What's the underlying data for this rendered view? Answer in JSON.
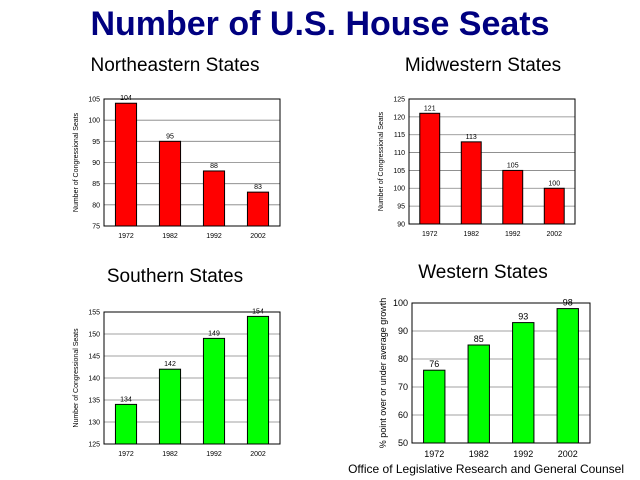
{
  "page": {
    "title": "Number of U.S. House Seats",
    "credit": "Office of Legislative Research and General Counsel"
  },
  "colors": {
    "title": "#000080",
    "red_bars": "#ff0000",
    "green_bars": "#00ff00"
  },
  "chart_data": [
    {
      "type": "bar",
      "title": "Northeastern States",
      "ylabel": "Number of Congressional Seats",
      "categories": [
        "1972",
        "1982",
        "1992",
        "2002"
      ],
      "values": [
        104,
        95,
        88,
        83
      ],
      "ylim": [
        75,
        105
      ],
      "yticks": [
        75,
        80,
        85,
        90,
        95,
        100,
        105
      ],
      "color": "#ff0000",
      "grid": true
    },
    {
      "type": "bar",
      "title": "Midwestern States",
      "ylabel": "Number of Congressional Seats",
      "categories": [
        "1972",
        "1982",
        "1992",
        "2002"
      ],
      "values": [
        121,
        113,
        105,
        100
      ],
      "ylim": [
        90,
        125
      ],
      "yticks": [
        90,
        95,
        100,
        105,
        110,
        115,
        120,
        125
      ],
      "color": "#ff0000",
      "grid": true
    },
    {
      "type": "bar",
      "title": "Southern States",
      "ylabel": "Number of Congressional Seats",
      "categories": [
        "1972",
        "1982",
        "1992",
        "2002"
      ],
      "values": [
        134,
        142,
        149,
        154
      ],
      "ylim": [
        125,
        155
      ],
      "yticks": [
        125,
        130,
        135,
        140,
        145,
        150,
        155
      ],
      "color": "#00ff00",
      "grid": true
    },
    {
      "type": "bar",
      "title": "Western States",
      "ylabel": "% point over or under average growth",
      "categories": [
        "1972",
        "1982",
        "1992",
        "2002"
      ],
      "values": [
        76,
        85,
        93,
        98
      ],
      "ylim": [
        50,
        100
      ],
      "yticks": [
        50,
        60,
        70,
        80,
        90,
        100
      ],
      "color": "#00ff00",
      "grid": true
    }
  ]
}
